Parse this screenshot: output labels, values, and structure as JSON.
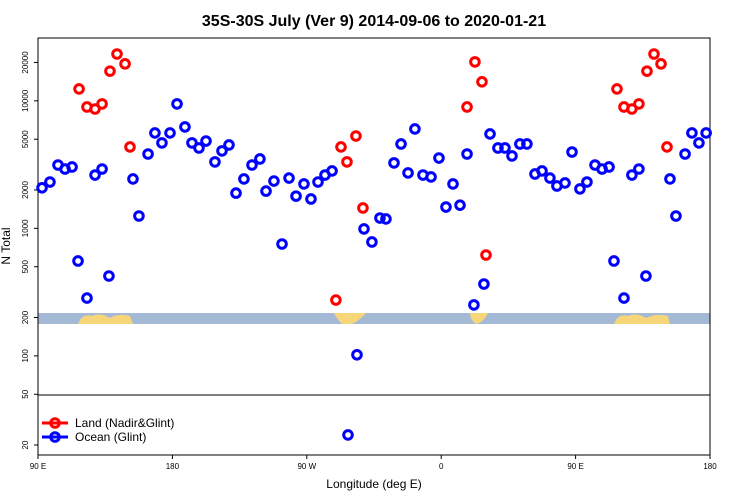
{
  "chart_data": {
    "type": "scatter",
    "title": "35S-30S July (Ver 9)   2014-09-06 to 2020-01-21",
    "xlabel": "Longitude (deg E)",
    "ylabel": "N Total",
    "log_y": true,
    "legend": "bottom-left",
    "xlim": [
      90,
      540
    ],
    "xticks": [
      {
        "value": 90,
        "label": "90 E"
      },
      180,
      {
        "value": 270,
        "label": "90 W"
      },
      {
        "value": 360,
        "label": "0"
      },
      {
        "value": 450,
        "label": "90 E"
      },
      {
        "value": 540,
        "label": "180"
      }
    ],
    "ylim": [
      16.7,
      31100
    ],
    "yticks": [
      20,
      50,
      100,
      200,
      500,
      1000,
      2000,
      5000,
      10000,
      20000
    ],
    "series": [
      {
        "name": "Land (Nadir&Glint)",
        "color": "#ff0000",
        "x": [
          117.5,
          122.8,
          128.2,
          132.9,
          138.2,
          142.9,
          148.3,
          151.6,
          289.5,
          292.9,
          296.9,
          302.9,
          307.6,
          377.3,
          382.6,
          387.3,
          390.0,
          477.7,
          482.4,
          487.7,
          492.4,
          497.8,
          502.5,
          507.2,
          511.2
        ],
        "values": [
          12400,
          8950,
          8630,
          9460,
          17100,
          23300,
          19500,
          4350,
          274,
          4350,
          3320,
          5300,
          1445,
          8950,
          20200,
          14100,
          618,
          12400,
          8950,
          8630,
          9460,
          17100,
          23300,
          19500,
          4350
        ]
      },
      {
        "name": "Ocean (Glint)",
        "color": "#0000ff",
        "x": [
          92.7,
          98.0,
          103.4,
          108.1,
          112.8,
          116.8,
          122.8,
          128.2,
          132.9,
          137.5,
          157.6,
          153.6,
          163.7,
          168.3,
          173.0,
          178.4,
          183.1,
          188.4,
          193.1,
          197.8,
          202.5,
          208.5,
          213.2,
          217.9,
          222.6,
          227.9,
          233.3,
          238.6,
          242.7,
          248.0,
          253.4,
          258.1,
          262.8,
          268.1,
          272.8,
          277.5,
          282.2,
          286.9,
          303.6,
          297.6,
          308.3,
          313.6,
          319.0,
          323.0,
          328.4,
          333.1,
          337.8,
          342.4,
          347.8,
          353.2,
          358.5,
          363.2,
          367.9,
          372.6,
          377.3,
          381.9,
          388.6,
          392.7,
          398.0,
          402.7,
          407.4,
          412.7,
          417.4,
          422.8,
          427.5,
          432.8,
          437.5,
          442.9,
          447.6,
          452.9,
          457.6,
          463.0,
          467.7,
          472.4,
          475.7,
          482.4,
          487.7,
          492.4,
          497.1,
          513.2,
          517.2,
          523.3,
          527.9,
          532.6,
          537.4
        ],
        "values": [
          2080,
          2310,
          3140,
          2920,
          3030,
          555,
          284,
          2620,
          2920,
          423,
          1250,
          2440,
          3830,
          5600,
          4680,
          5600,
          9460,
          6240,
          4680,
          4270,
          4840,
          3320,
          4050,
          4510,
          1890,
          2440,
          3140,
          3500,
          1960,
          2350,
          754,
          2480,
          1790,
          2230,
          1700,
          2310,
          2620,
          2820,
          102,
          24,
          990,
          782,
          1205,
          1185,
          3260,
          4590,
          2720,
          6020,
          2620,
          2530,
          3560,
          1470,
          2230,
          1520,
          3830,
          251,
          366,
          5500,
          4270,
          4270,
          3700,
          4590,
          4590,
          2670,
          2820,
          2480,
          2150,
          2270,
          3970,
          2040,
          2310,
          3140,
          2920,
          3030,
          555,
          284,
          2620,
          2920,
          423,
          2440,
          1250,
          3830,
          5600,
          4680,
          5600
        ]
      }
    ]
  }
}
